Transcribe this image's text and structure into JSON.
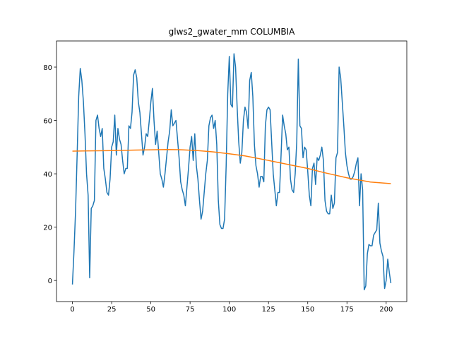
{
  "chart_data": {
    "type": "line",
    "title": "glws2_gwater_mm COLUMBIA",
    "xlim": [
      -10.15,
      213.15
    ],
    "ylim": [
      -7.9,
      89.8
    ],
    "xticks": [
      0,
      25,
      50,
      75,
      100,
      125,
      150,
      175,
      200
    ],
    "yticks": [
      0,
      20,
      40,
      60,
      80
    ],
    "grid": false,
    "series": [
      {
        "color": "#1f77b4",
        "x": [
          0,
          1,
          2,
          3,
          4,
          5,
          6,
          7,
          8,
          9,
          10,
          11,
          12,
          13,
          14,
          15,
          16,
          17,
          18,
          19,
          20,
          21,
          22,
          23,
          24,
          25,
          26,
          27,
          28,
          29,
          30,
          31,
          32,
          33,
          34,
          35,
          36,
          37,
          38,
          39,
          40,
          41,
          42,
          43,
          44,
          45,
          46,
          47,
          48,
          49,
          50,
          51,
          52,
          53,
          54,
          55,
          56,
          57,
          58,
          59,
          60,
          61,
          62,
          63,
          64,
          65,
          66,
          67,
          68,
          69,
          70,
          71,
          72,
          73,
          74,
          75,
          76,
          77,
          78,
          79,
          80,
          81,
          82,
          83,
          84,
          85,
          86,
          87,
          88,
          89,
          90,
          91,
          92,
          93,
          94,
          95,
          96,
          97,
          98,
          99,
          100,
          101,
          102,
          103,
          104,
          105,
          106,
          107,
          108,
          109,
          110,
          111,
          112,
          113,
          114,
          115,
          116,
          117,
          118,
          119,
          120,
          121,
          122,
          123,
          124,
          125,
          126,
          127,
          128,
          129,
          130,
          131,
          132,
          133,
          134,
          135,
          136,
          137,
          138,
          139,
          140,
          141,
          142,
          143,
          144,
          145,
          146,
          147,
          148,
          149,
          150,
          151,
          152,
          153,
          154,
          155,
          156,
          157,
          158,
          159,
          160,
          161,
          162,
          163,
          164,
          165,
          166,
          167,
          168,
          169,
          170,
          171,
          172,
          173,
          174,
          175,
          176,
          177,
          178,
          179,
          180,
          181,
          182,
          183,
          184,
          185,
          186,
          187,
          188,
          189,
          190,
          191,
          192,
          193,
          194,
          195,
          196,
          197,
          198,
          199,
          200,
          201,
          202,
          203
        ],
        "values": [
          -1.5,
          11,
          26,
          47,
          69,
          79.5,
          75,
          67,
          55,
          40,
          32,
          1,
          27,
          28,
          30,
          60,
          62,
          57,
          54,
          57,
          42,
          38,
          33,
          32,
          38,
          50,
          52,
          62,
          47,
          57,
          53,
          51,
          45,
          40,
          42,
          42,
          58,
          57,
          63,
          77,
          79,
          76,
          67,
          63,
          55,
          47,
          50,
          55,
          54,
          60,
          67,
          72,
          60,
          51,
          56,
          48,
          40,
          38,
          35,
          40,
          46,
          52,
          56,
          64,
          58,
          59,
          60,
          53,
          46,
          37,
          34,
          32,
          28,
          35,
          42,
          50,
          54,
          45,
          55,
          43,
          38,
          30,
          23,
          26,
          33,
          40,
          45,
          58,
          61,
          62,
          57,
          60,
          51,
          30,
          21,
          19.5,
          19.5,
          23,
          43,
          70,
          84,
          66,
          65,
          85,
          80,
          65,
          52,
          44,
          48,
          60,
          65,
          63,
          57,
          75,
          78,
          69,
          51,
          43,
          40,
          35,
          39,
          39,
          37,
          58,
          64,
          65,
          64,
          52,
          40,
          34,
          28,
          33,
          33,
          47,
          62,
          58,
          55,
          49,
          50,
          38,
          34,
          33,
          40,
          52,
          83,
          58,
          57,
          46,
          50,
          49,
          41,
          32,
          28,
          42,
          44,
          36,
          46,
          45,
          47,
          50,
          45,
          30,
          26,
          25,
          25,
          32,
          27,
          29,
          46,
          48,
          80,
          76,
          67,
          58,
          48,
          43,
          40,
          38,
          38,
          39,
          41,
          44,
          46,
          28,
          40,
          34,
          -3.5,
          -2,
          10,
          13.5,
          13,
          13,
          17,
          18,
          19,
          29,
          14,
          11,
          9,
          -3,
          0,
          8,
          3,
          -1
        ]
      },
      {
        "color": "#ff7f0e",
        "x": [
          0,
          10,
          25,
          40,
          50,
          60,
          70,
          80,
          90,
          100,
          110,
          125,
          140,
          150,
          160,
          175,
          190,
          203
        ],
        "values": [
          48.5,
          48.6,
          48.7,
          48.9,
          49,
          49.1,
          49,
          48.7,
          48.2,
          47.5,
          46.7,
          45,
          43.2,
          42,
          40.5,
          38.5,
          36.9,
          36.3
        ]
      }
    ]
  }
}
